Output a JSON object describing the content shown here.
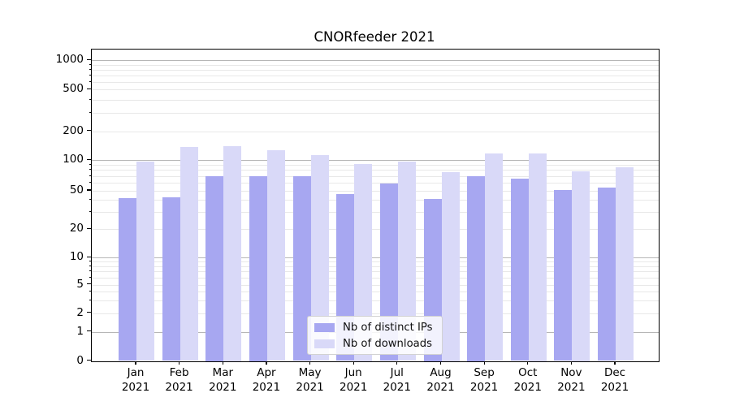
{
  "title": "CNORfeeder 2021",
  "chart_data": {
    "type": "bar",
    "title": "CNORfeeder 2021",
    "categories": [
      "Jan 2021",
      "Feb 2021",
      "Mar 2021",
      "Apr 2021",
      "May 2021",
      "Jun 2021",
      "Jul 2021",
      "Aug 2021",
      "Sep 2021",
      "Oct 2021",
      "Nov 2021",
      "Dec 2021"
    ],
    "series": [
      {
        "key": "distinct-ips",
        "name": "Nb of distinct IPs",
        "color": "#a7a7f1",
        "values": [
          42,
          43,
          70,
          70,
          69,
          46,
          59,
          41,
          70,
          66,
          51,
          54
        ]
      },
      {
        "key": "downloads",
        "name": "Nb of downloads",
        "color": "#d9d9f8",
        "values": [
          96,
          136,
          141,
          126,
          112,
          92,
          96,
          76,
          116,
          117,
          78,
          85
        ]
      }
    ],
    "y_axis": {
      "scale": "symlog-like",
      "ylim": [
        0,
        1400
      ],
      "tick_values": [
        0,
        1,
        2,
        5,
        10,
        20,
        50,
        100,
        200,
        500,
        1000
      ],
      "tick_labels": [
        "0",
        "1",
        "2",
        "5",
        "10",
        "20",
        "50",
        "100",
        "200",
        "500",
        "1000"
      ],
      "major_values": [
        1,
        10,
        100,
        1000
      ],
      "minor_values": [
        3,
        4,
        6,
        7,
        8,
        9,
        30,
        40,
        60,
        70,
        80,
        90,
        300,
        400,
        600,
        700,
        800,
        900
      ],
      "anchors": [
        [
          0,
          383.5
        ],
        [
          1,
          347.5
        ],
        [
          2,
          324.5
        ],
        [
          5,
          289.5
        ],
        [
          10,
          256
        ],
        [
          20,
          221
        ],
        [
          50,
          173.8
        ],
        [
          100,
          136
        ],
        [
          200,
          100.7
        ],
        [
          500,
          49.3
        ],
        [
          1000,
          13
        ]
      ]
    },
    "legend": {
      "position": "lower center"
    },
    "grid": true
  }
}
